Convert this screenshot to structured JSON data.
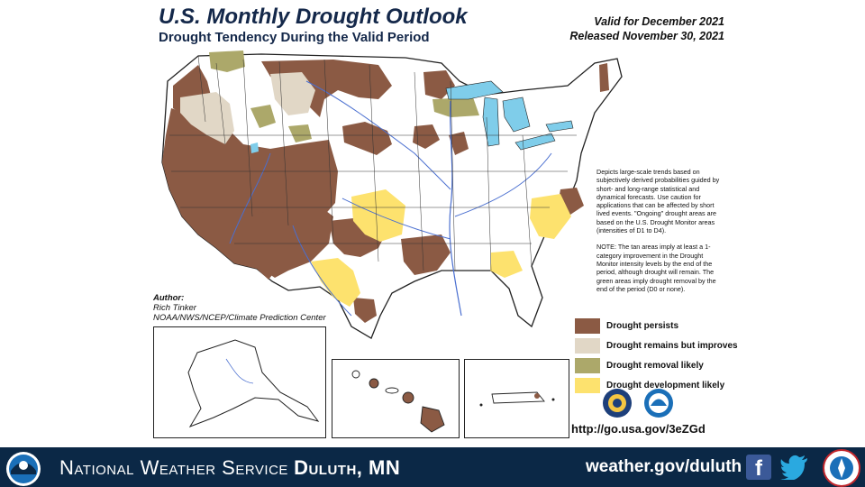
{
  "header": {
    "title": "U.S. Monthly Drought Outlook",
    "subtitle": "Drought Tendency During the Valid Period",
    "valid": "Valid for December 2021",
    "released": "Released November 30, 2021"
  },
  "description": {
    "para1": "Depicts large-scale trends based on subjectively derived probabilities guided by short- and long-range statistical and dynamical forecasts. Use caution for applications that can be affected by short lived events. \"Ongoing\" drought areas are based on the U.S. Drought Monitor areas (intensities of D1 to D4).",
    "para2": "NOTE: The tan areas imply at least a 1-category improvement in the Drought Monitor intensity levels by the end of the period, although drought will remain. The green areas imply drought removal by the end of the period (D0 or none)."
  },
  "legend": [
    {
      "label": "Drought persists",
      "color": "#8b5a44"
    },
    {
      "label": "Drought remains but improves",
      "color": "#e1d7c6"
    },
    {
      "label": "Drought removal likely",
      "color": "#aca86a"
    },
    {
      "label": "Drought development likely",
      "color": "#fde26e"
    }
  ],
  "author": {
    "label": "Author:",
    "name": "Rich Tinker",
    "org": "NOAA/NWS/NCEP/Climate Prediction Center"
  },
  "link": "http://go.usa.gov/3eZGd",
  "footer": {
    "org_prefix": "National Weather Service",
    "office": "Duluth, MN",
    "url": "weather.gov/duluth"
  },
  "colors": {
    "footer_bg": "#0b2846",
    "title": "#14284a",
    "water": "#7fcdea",
    "rivers": "#4a6fd0"
  },
  "icons": [
    "noaa-logo",
    "doc-seal",
    "noaa-seal",
    "facebook-icon",
    "twitter-icon",
    "nws-logo"
  ]
}
